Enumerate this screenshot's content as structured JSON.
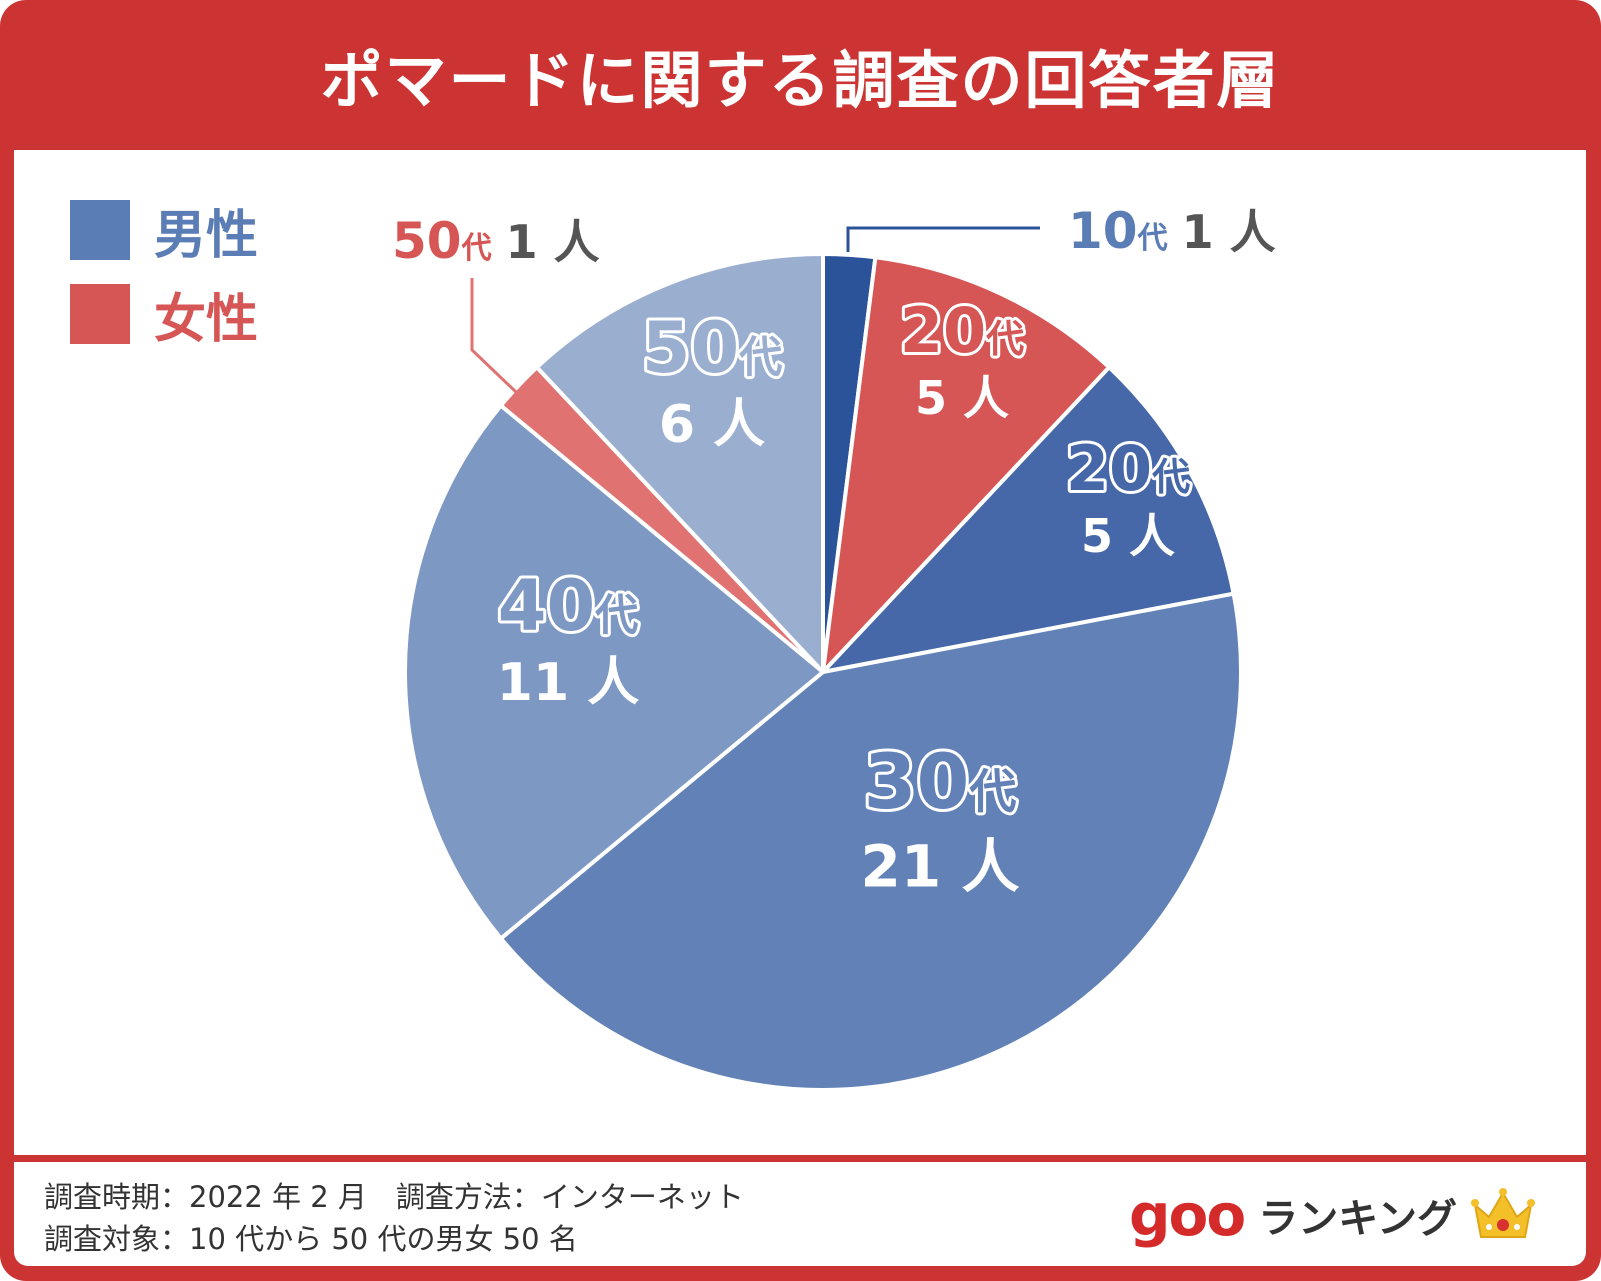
{
  "title": "ポマードに関する調査の回答者層",
  "legend": [
    {
      "label": "男性",
      "color": "#5b7db6"
    },
    {
      "label": "女性",
      "color": "#d65555"
    }
  ],
  "footer": {
    "line1": "調査時期：2022 年 2 月　調査方法：インターネット",
    "line2": "調査対象：10 代から 50 代の男女 50 名",
    "brand_goo": "goo",
    "brand_ranking": "ランキング"
  },
  "chart_data": {
    "type": "pie",
    "title": "ポマードに関する調査の回答者層",
    "total": 50,
    "slices": [
      {
        "gender": "男性",
        "age": "10代",
        "count": 1,
        "age_label": "10",
        "count_label": "1 人",
        "color": "#2a5399",
        "label_style": "outside"
      },
      {
        "gender": "女性",
        "age": "20代",
        "count": 5,
        "age_label": "20",
        "count_label": "5 人",
        "color": "#d65555",
        "label_style": "inside"
      },
      {
        "gender": "男性",
        "age": "20代",
        "count": 5,
        "age_label": "20",
        "count_label": "5 人",
        "color": "#4668a8",
        "label_style": "inside"
      },
      {
        "gender": "男性",
        "age": "30代",
        "count": 21,
        "age_label": "30",
        "count_label": "21 人",
        "color": "#6282b7",
        "label_style": "inside"
      },
      {
        "gender": "男性",
        "age": "40代",
        "count": 11,
        "age_label": "40",
        "count_label": "11 人",
        "color": "#7d98c3",
        "label_style": "inside"
      },
      {
        "gender": "女性",
        "age": "50代",
        "count": 1,
        "age_label": "50",
        "count_label": "1 人",
        "color": "#e07272",
        "label_style": "outside"
      },
      {
        "gender": "男性",
        "age": "50代",
        "count": 6,
        "age_label": "50",
        "count_label": "6 人",
        "color": "#9aafd0",
        "label_style": "inside"
      }
    ],
    "dai_suffix": "代",
    "start": "12 o'clock, clockwise",
    "legend_position": "top-left"
  }
}
